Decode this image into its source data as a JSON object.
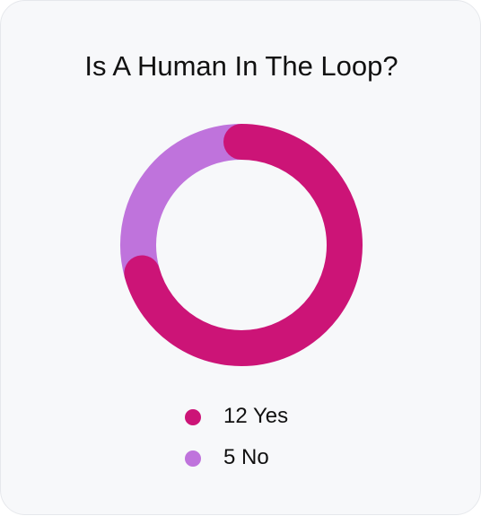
{
  "chart_data": {
    "type": "donut",
    "title": "Is A Human In The Loop?",
    "categories": [
      "Yes",
      "No"
    ],
    "values": [
      12,
      5
    ],
    "colors": [
      "#cc1477",
      "#bf73dc"
    ]
  }
}
